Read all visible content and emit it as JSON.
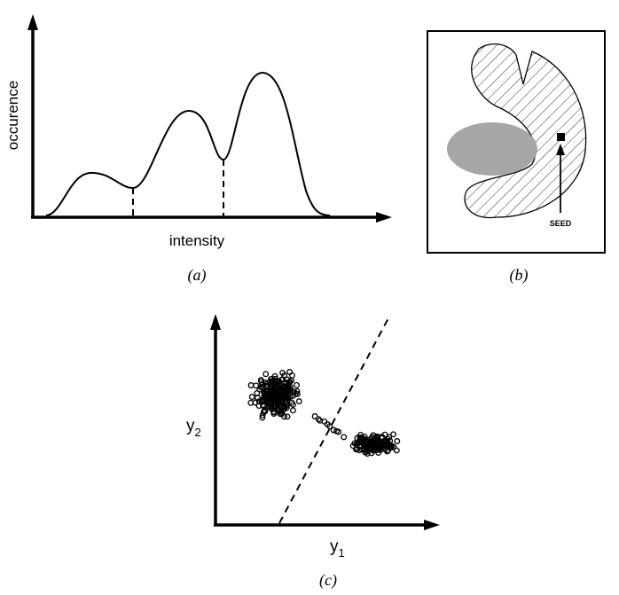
{
  "panel_a": {
    "y_axis_label": "occurence",
    "x_axis_label": "intensity",
    "caption": "(a)"
  },
  "panel_b": {
    "seed_label": "SEED",
    "caption": "(b)"
  },
  "panel_c": {
    "y_axis_label": {
      "symbol": "y",
      "subscript": "2"
    },
    "x_axis_label": {
      "symbol": "y",
      "subscript": "1"
    },
    "caption": "(c)"
  }
}
